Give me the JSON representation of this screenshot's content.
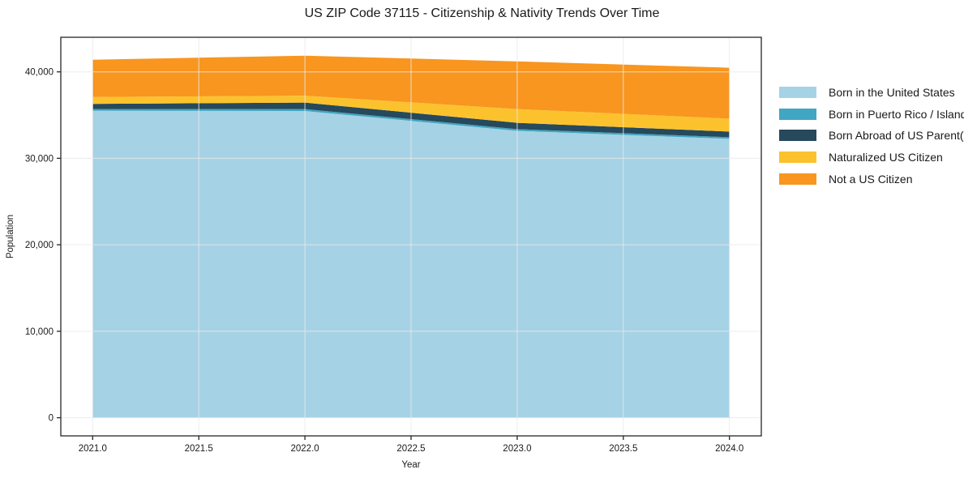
{
  "chart_data": {
    "type": "area",
    "stacked": true,
    "title": "US ZIP Code 37115 - Citizenship & Nativity Trends Over Time",
    "xlabel": "Year",
    "ylabel": "Population",
    "x": [
      2021,
      2022,
      2023,
      2024
    ],
    "series": [
      {
        "name": "Born in the United States",
        "color": "#a6d2e5",
        "values": [
          35500,
          35470,
          33180,
          32250
        ]
      },
      {
        "name": "Born in Puerto Rico / Islands",
        "color": "#41a6c2",
        "values": [
          200,
          230,
          190,
          190
        ]
      },
      {
        "name": "Born Abroad of US Parent(s)",
        "color": "#26495c",
        "values": [
          600,
          750,
          740,
          650
        ]
      },
      {
        "name": "Naturalized US Citizen",
        "color": "#fcc22e",
        "values": [
          790,
          790,
          1590,
          1490
        ]
      },
      {
        "name": "Not a US Citizen",
        "color": "#f8961f",
        "values": [
          4310,
          4630,
          5510,
          5900
        ]
      }
    ],
    "totals": [
      41400,
      41870,
      41210,
      40480
    ],
    "xticks": {
      "values": [
        2021.0,
        2021.5,
        2022.0,
        2022.5,
        2023.0,
        2023.5,
        2024.0
      ],
      "labels": [
        "2021.0",
        "2021.5",
        "2022.0",
        "2022.5",
        "2023.0",
        "2023.5",
        "2024.0"
      ]
    },
    "yticks": {
      "values": [
        0,
        10000,
        20000,
        30000,
        40000
      ],
      "labels": [
        "0",
        "10,000",
        "20,000",
        "30,000",
        "40,000"
      ]
    },
    "xlim": [
      2020.85,
      2024.15
    ],
    "ylim": [
      -2100,
      44000
    ],
    "grid": true,
    "legend_position": "right of plot, top",
    "colors": {
      "grid": "#e9e9e9",
      "spine": "#262626",
      "tick_text": "#1a1a1a",
      "background": "#ffffff"
    }
  }
}
